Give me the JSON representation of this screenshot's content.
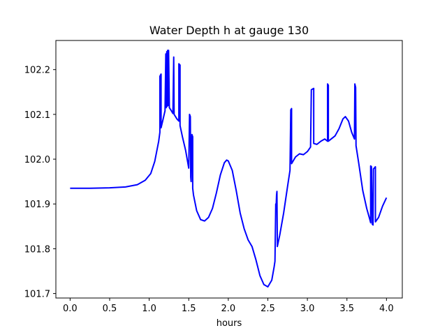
{
  "chart_data": {
    "type": "line",
    "title": "Water Depth h at gauge 130",
    "xlabel": "hours",
    "ylabel": "",
    "xlim": [
      -0.18,
      4.2
    ],
    "ylim": [
      101.69,
      102.265
    ],
    "x_ticks": [
      0.0,
      0.5,
      1.0,
      1.5,
      2.0,
      2.5,
      3.0,
      3.5,
      4.0
    ],
    "x_tick_labels": [
      "0.0",
      "0.5",
      "1.0",
      "1.5",
      "2.0",
      "2.5",
      "3.0",
      "3.5",
      "4.0"
    ],
    "y_ticks": [
      101.7,
      101.8,
      101.9,
      102.0,
      102.1,
      102.2
    ],
    "y_tick_labels": [
      "101.7",
      "101.8",
      "101.9",
      "102.0",
      "102.1",
      "102.2"
    ],
    "grid": false,
    "series": [
      {
        "color": "#0000ff",
        "points": [
          [
            0.0,
            101.935
          ],
          [
            0.25,
            101.935
          ],
          [
            0.5,
            101.936
          ],
          [
            0.7,
            101.938
          ],
          [
            0.85,
            101.943
          ],
          [
            0.95,
            101.953
          ],
          [
            1.02,
            101.968
          ],
          [
            1.07,
            101.995
          ],
          [
            1.12,
            102.04
          ],
          [
            1.135,
            102.06
          ],
          [
            1.135,
            102.185
          ],
          [
            1.15,
            102.19
          ],
          [
            1.15,
            102.07
          ],
          [
            1.17,
            102.085
          ],
          [
            1.2,
            102.108
          ],
          [
            1.21,
            102.235
          ],
          [
            1.215,
            102.115
          ],
          [
            1.222,
            102.24
          ],
          [
            1.228,
            102.118
          ],
          [
            1.233,
            102.243
          ],
          [
            1.24,
            102.12
          ],
          [
            1.245,
            102.243
          ],
          [
            1.255,
            102.115
          ],
          [
            1.28,
            102.108
          ],
          [
            1.3,
            102.102
          ],
          [
            1.31,
            102.228
          ],
          [
            1.315,
            102.1
          ],
          [
            1.35,
            102.09
          ],
          [
            1.375,
            102.085
          ],
          [
            1.375,
            102.213
          ],
          [
            1.39,
            102.21
          ],
          [
            1.39,
            102.075
          ],
          [
            1.42,
            102.05
          ],
          [
            1.46,
            102.02
          ],
          [
            1.5,
            101.98
          ],
          [
            1.51,
            102.1
          ],
          [
            1.52,
            102.095
          ],
          [
            1.525,
            101.96
          ],
          [
            1.53,
            101.95
          ],
          [
            1.54,
            102.055
          ],
          [
            1.55,
            102.05
          ],
          [
            1.55,
            101.935
          ],
          [
            1.56,
            101.92
          ],
          [
            1.6,
            101.885
          ],
          [
            1.65,
            101.865
          ],
          [
            1.7,
            101.862
          ],
          [
            1.75,
            101.87
          ],
          [
            1.8,
            101.89
          ],
          [
            1.85,
            101.925
          ],
          [
            1.9,
            101.965
          ],
          [
            1.95,
            101.992
          ],
          [
            1.98,
            101.998
          ],
          [
            2.0,
            101.996
          ],
          [
            2.05,
            101.975
          ],
          [
            2.1,
            101.93
          ],
          [
            2.15,
            101.88
          ],
          [
            2.2,
            101.845
          ],
          [
            2.25,
            101.82
          ],
          [
            2.3,
            101.805
          ],
          [
            2.35,
            101.775
          ],
          [
            2.4,
            101.74
          ],
          [
            2.45,
            101.72
          ],
          [
            2.5,
            101.715
          ],
          [
            2.55,
            101.73
          ],
          [
            2.58,
            101.76
          ],
          [
            2.59,
            101.772
          ],
          [
            2.6,
            101.9
          ],
          [
            2.605,
            101.895
          ],
          [
            2.61,
            101.92
          ],
          [
            2.615,
            101.928
          ],
          [
            2.62,
            101.805
          ],
          [
            2.65,
            101.83
          ],
          [
            2.7,
            101.88
          ],
          [
            2.75,
            101.94
          ],
          [
            2.78,
            101.975
          ],
          [
            2.79,
            102.11
          ],
          [
            2.8,
            102.113
          ],
          [
            2.8,
            101.99
          ],
          [
            2.85,
            102.005
          ],
          [
            2.9,
            102.012
          ],
          [
            2.95,
            102.01
          ],
          [
            3.0,
            102.017
          ],
          [
            3.04,
            102.027
          ],
          [
            3.05,
            102.155
          ],
          [
            3.08,
            102.158
          ],
          [
            3.08,
            102.035
          ],
          [
            3.12,
            102.033
          ],
          [
            3.17,
            102.04
          ],
          [
            3.22,
            102.045
          ],
          [
            3.255,
            102.04
          ],
          [
            3.255,
            102.168
          ],
          [
            3.265,
            102.165
          ],
          [
            3.265,
            102.04
          ],
          [
            3.3,
            102.045
          ],
          [
            3.35,
            102.052
          ],
          [
            3.4,
            102.068
          ],
          [
            3.45,
            102.09
          ],
          [
            3.48,
            102.095
          ],
          [
            3.52,
            102.085
          ],
          [
            3.56,
            102.06
          ],
          [
            3.595,
            102.045
          ],
          [
            3.6,
            102.168
          ],
          [
            3.61,
            102.16
          ],
          [
            3.615,
            102.03
          ],
          [
            3.65,
            101.99
          ],
          [
            3.7,
            101.93
          ],
          [
            3.75,
            101.89
          ],
          [
            3.79,
            101.865
          ],
          [
            3.8,
            101.858
          ],
          [
            3.8,
            101.985
          ],
          [
            3.81,
            101.983
          ],
          [
            3.82,
            101.855
          ],
          [
            3.83,
            101.853
          ],
          [
            3.835,
            101.978
          ],
          [
            3.86,
            101.983
          ],
          [
            3.86,
            101.86
          ],
          [
            3.9,
            101.87
          ],
          [
            3.95,
            101.895
          ],
          [
            4.0,
            101.914
          ]
        ]
      }
    ]
  }
}
